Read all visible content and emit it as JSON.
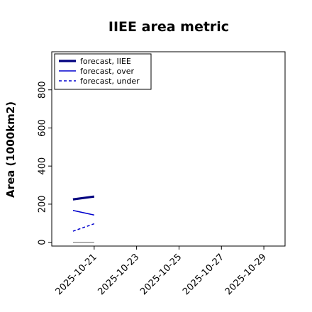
{
  "chart_data": {
    "type": "line",
    "title": "IIEE area metric",
    "ylabel": "Area (1000km2)",
    "xlabel": "",
    "ylim": [
      -20,
      1000
    ],
    "yticks": [
      0,
      200,
      400,
      600,
      800
    ],
    "xlim": [
      "2025-10-19",
      "2025-10-30"
    ],
    "xticks": [
      "2025-10-21",
      "2025-10-23",
      "2025-10-25",
      "2025-10-27",
      "2025-10-29"
    ],
    "highlight_tick": "2025-10-21",
    "highlight_color": "#228b22",
    "legend": {
      "position": "top-left"
    },
    "series": [
      {
        "name": "forecast, IIEE",
        "color": "#00007f",
        "style": "solid-thick",
        "x": [
          "2025-10-20",
          "2025-10-21"
        ],
        "y": [
          225,
          240
        ]
      },
      {
        "name": "forecast, over",
        "color": "#0000cd",
        "style": "solid",
        "x": [
          "2025-10-20",
          "2025-10-21"
        ],
        "y": [
          167,
          143
        ]
      },
      {
        "name": "forecast, under",
        "color": "#0000cd",
        "style": "dashed",
        "x": [
          "2025-10-20",
          "2025-10-21"
        ],
        "y": [
          58,
          97
        ]
      },
      {
        "name": "",
        "color": "#808080",
        "style": "solid-thin",
        "x": [
          "2025-10-20",
          "2025-10-21"
        ],
        "y": [
          0,
          0
        ]
      }
    ]
  }
}
